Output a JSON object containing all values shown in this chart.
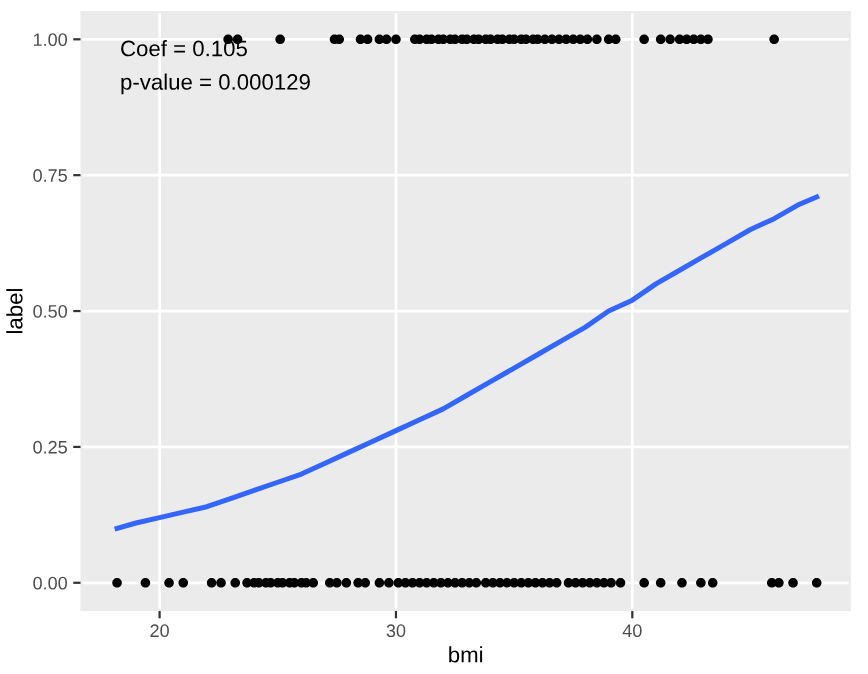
{
  "chart_data": {
    "type": "scatter",
    "xlabel": "bmi",
    "ylabel": "label",
    "annotations": [
      "Coef = 0.105",
      "p-value = 0.000129"
    ],
    "series": [
      {
        "color": "#000000",
        "marker": "circle",
        "x": [
          22.9,
          23.3,
          25.1,
          27.4,
          27.6,
          28.5,
          28.8,
          29.3,
          29.6,
          30.0,
          30.8,
          31.0,
          31.3,
          31.5,
          31.8,
          32.0,
          32.3,
          32.5,
          32.8,
          33.0,
          33.3,
          33.5,
          33.8,
          34.0,
          34.3,
          34.5,
          34.8,
          35.0,
          35.3,
          35.5,
          35.8,
          36.0,
          36.3,
          36.6,
          36.9,
          37.2,
          37.5,
          37.8,
          38.1,
          38.5,
          39.0,
          39.3,
          40.5,
          41.2,
          41.6,
          42.0,
          42.3,
          42.6,
          42.9,
          43.2,
          46.0
        ],
        "values": [
          1,
          1,
          1,
          1,
          1,
          1,
          1,
          1,
          1,
          1,
          1,
          1,
          1,
          1,
          1,
          1,
          1,
          1,
          1,
          1,
          1,
          1,
          1,
          1,
          1,
          1,
          1,
          1,
          1,
          1,
          1,
          1,
          1,
          1,
          1,
          1,
          1,
          1,
          1,
          1,
          1,
          1,
          1,
          1,
          1,
          1,
          1,
          1,
          1,
          1,
          1
        ]
      },
      {
        "color": "#000000",
        "marker": "circle",
        "x": [
          18.2,
          19.4,
          20.4,
          21.0,
          22.2,
          22.6,
          23.2,
          23.7,
          24.0,
          24.2,
          24.5,
          24.7,
          25.0,
          25.2,
          25.5,
          25.7,
          26.0,
          26.2,
          26.5,
          27.2,
          27.5,
          27.9,
          28.4,
          28.7,
          29.3,
          29.7,
          30.1,
          30.4,
          30.7,
          31.0,
          31.3,
          31.6,
          31.9,
          32.2,
          32.5,
          32.8,
          33.1,
          33.4,
          33.8,
          34.1,
          34.4,
          34.7,
          35.0,
          35.3,
          35.6,
          35.9,
          36.2,
          36.5,
          36.8,
          37.3,
          37.6,
          37.9,
          38.2,
          38.5,
          38.8,
          39.1,
          39.5,
          40.5,
          41.2,
          42.1,
          42.9,
          43.4,
          45.9,
          46.2,
          46.8,
          47.8
        ],
        "values": [
          0,
          0,
          0,
          0,
          0,
          0,
          0,
          0,
          0,
          0,
          0,
          0,
          0,
          0,
          0,
          0,
          0,
          0,
          0,
          0,
          0,
          0,
          0,
          0,
          0,
          0,
          0,
          0,
          0,
          0,
          0,
          0,
          0,
          0,
          0,
          0,
          0,
          0,
          0,
          0,
          0,
          0,
          0,
          0,
          0,
          0,
          0,
          0,
          0,
          0,
          0,
          0,
          0,
          0,
          0,
          0,
          0,
          0,
          0,
          0,
          0,
          0,
          0,
          0,
          0,
          0
        ]
      },
      {
        "type": "line",
        "color": "#3366ff",
        "marker": "none",
        "x": [
          18.2,
          19,
          20,
          21,
          22,
          23,
          24,
          25,
          26,
          27,
          28,
          29,
          30,
          31,
          32,
          33,
          34,
          35,
          36,
          37,
          38,
          39,
          40,
          41,
          42,
          43,
          44,
          45,
          46,
          47,
          47.8
        ],
        "values": [
          0.1,
          0.11,
          0.12,
          0.13,
          0.14,
          0.155,
          0.17,
          0.185,
          0.2,
          0.22,
          0.24,
          0.26,
          0.28,
          0.3,
          0.32,
          0.345,
          0.37,
          0.395,
          0.42,
          0.445,
          0.47,
          0.5,
          0.52,
          0.55,
          0.575,
          0.6,
          0.625,
          0.65,
          0.67,
          0.695,
          0.71
        ]
      }
    ],
    "xlim": [
      16.7,
      49.2
    ],
    "ylim": [
      -0.05,
      1.05
    ],
    "xticks": [
      20,
      30,
      40
    ],
    "yticks": [
      {
        "value": 0,
        "label": "0.00"
      },
      {
        "value": 0.25,
        "label": "0.25"
      },
      {
        "value": 0.5,
        "label": "0.50"
      },
      {
        "value": 0.75,
        "label": "0.75"
      },
      {
        "value": 1,
        "label": "1.00"
      }
    ],
    "grid": true,
    "line_style": "solid"
  }
}
